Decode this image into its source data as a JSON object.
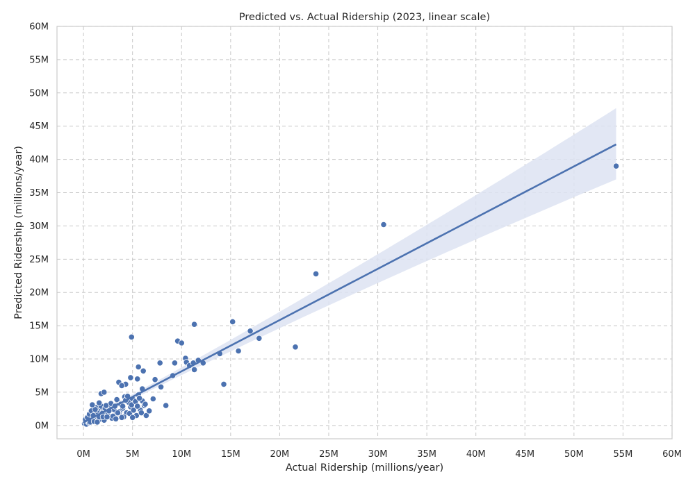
{
  "chart_data": {
    "type": "scatter",
    "title": "Predicted vs. Actual Ridership (2023, linear scale)",
    "xlabel": "Actual Ridership (millions/year)",
    "ylabel": "Predicted Ridership (millions/year)",
    "xlim": [
      -2.7,
      60
    ],
    "ylim": [
      -2.0,
      60
    ],
    "xticks": [
      0,
      5,
      10,
      15,
      20,
      25,
      30,
      35,
      40,
      45,
      50,
      55,
      60
    ],
    "yticks": [
      0,
      5,
      10,
      15,
      20,
      25,
      30,
      35,
      40,
      45,
      50,
      55,
      60
    ],
    "tick_suffix": "M",
    "grid": true,
    "point_color": "#4c72b0",
    "line_color": "#4c72b0",
    "band_color": "#dde3f2",
    "regression": {
      "x_range": [
        0,
        54.3
      ],
      "slope": 0.77,
      "intercept": 0.45,
      "ci_upper_at_max": 47.7,
      "ci_lower_at_max": 37.0
    },
    "series": [
      {
        "points": [
          [
            0.1,
            0.3
          ],
          [
            0.2,
            0.5
          ],
          [
            0.3,
            0.2
          ],
          [
            0.4,
            0.6
          ],
          [
            0.5,
            0.8
          ],
          [
            0.6,
            0.4
          ],
          [
            0.7,
            1.1
          ],
          [
            0.8,
            0.7
          ],
          [
            0.9,
            1.3
          ],
          [
            1.0,
            0.9
          ],
          [
            1.1,
            1.6
          ],
          [
            1.2,
            0.8
          ],
          [
            1.3,
            1.9
          ],
          [
            1.4,
            1.2
          ],
          [
            1.5,
            2.3
          ],
          [
            1.6,
            1.0
          ],
          [
            1.7,
            2.6
          ],
          [
            1.8,
            1.5
          ],
          [
            1.9,
            0.9
          ],
          [
            2.0,
            2.1
          ],
          [
            0.3,
            1.0
          ],
          [
            0.5,
            1.4
          ],
          [
            0.7,
            0.5
          ],
          [
            0.9,
            2.0
          ],
          [
            1.1,
            0.6
          ],
          [
            1.3,
            2.7
          ],
          [
            1.5,
            0.7
          ],
          [
            1.7,
            3.2
          ],
          [
            1.9,
            1.8
          ],
          [
            2.1,
            0.8
          ],
          [
            0.2,
            0.9
          ],
          [
            0.4,
            1.2
          ],
          [
            0.6,
            1.7
          ],
          [
            0.8,
            2.2
          ],
          [
            1.0,
            1.5
          ],
          [
            1.2,
            2.4
          ],
          [
            1.4,
            0.5
          ],
          [
            1.6,
            1.3
          ],
          [
            1.8,
            2.9
          ],
          [
            2.0,
            1.3
          ],
          [
            0.9,
            3.1
          ],
          [
            1.6,
            3.4
          ],
          [
            2.2,
            2.6
          ],
          [
            2.5,
            1.9
          ],
          [
            2.7,
            3.1
          ],
          [
            2.9,
            1.1
          ],
          [
            3.1,
            2.4
          ],
          [
            3.3,
            1.6
          ],
          [
            3.5,
            3.6
          ],
          [
            3.7,
            2.1
          ],
          [
            2.4,
            1.3
          ],
          [
            2.6,
            2.2
          ],
          [
            2.8,
            3.3
          ],
          [
            3.0,
            1.4
          ],
          [
            3.2,
            2.9
          ],
          [
            3.4,
            3.9
          ],
          [
            3.6,
            1.8
          ],
          [
            3.8,
            3.2
          ],
          [
            4.0,
            2.6
          ],
          [
            4.2,
            4.3
          ],
          [
            4.4,
            1.9
          ],
          [
            4.6,
            3.5
          ],
          [
            4.8,
            2.8
          ],
          [
            5.0,
            4.0
          ],
          [
            5.2,
            3.4
          ],
          [
            5.4,
            1.5
          ],
          [
            5.6,
            4.6
          ],
          [
            5.8,
            2.3
          ],
          [
            6.0,
            3.7
          ],
          [
            6.2,
            3.0
          ],
          [
            4.1,
            1.3
          ],
          [
            4.3,
            3.8
          ],
          [
            4.5,
            4.4
          ],
          [
            4.7,
            1.8
          ],
          [
            4.9,
            3.1
          ],
          [
            5.1,
            2.3
          ],
          [
            5.3,
            3.6
          ],
          [
            5.5,
            2.9
          ],
          [
            5.7,
            4.1
          ],
          [
            5.9,
            1.9
          ],
          [
            3.3,
            1.0
          ],
          [
            3.9,
            1.2
          ],
          [
            5.0,
            1.2
          ],
          [
            6.4,
            1.5
          ],
          [
            6.3,
            3.2
          ],
          [
            6.7,
            2.2
          ],
          [
            7.1,
            4.0
          ],
          [
            3.5,
            1.9
          ],
          [
            4.0,
            2.9
          ],
          [
            2.3,
            3.0
          ],
          [
            3.6,
            6.5
          ],
          [
            4.3,
            6.2
          ],
          [
            5.5,
            7.0
          ],
          [
            5.6,
            8.8
          ],
          [
            6.0,
            5.5
          ],
          [
            6.1,
            8.2
          ],
          [
            4.8,
            7.2
          ],
          [
            3.9,
            6.0
          ],
          [
            1.8,
            4.8
          ],
          [
            2.1,
            5.0
          ],
          [
            4.9,
            13.3
          ],
          [
            7.3,
            6.9
          ],
          [
            7.9,
            5.8
          ],
          [
            7.8,
            9.4
          ],
          [
            8.4,
            3.0
          ],
          [
            9.1,
            7.5
          ],
          [
            9.3,
            9.4
          ],
          [
            9.6,
            12.7
          ],
          [
            10.0,
            12.4
          ],
          [
            10.4,
            10.1
          ],
          [
            10.5,
            9.5
          ],
          [
            10.8,
            9.0
          ],
          [
            11.2,
            9.4
          ],
          [
            11.3,
            8.4
          ],
          [
            11.3,
            15.2
          ],
          [
            11.7,
            9.8
          ],
          [
            12.2,
            9.4
          ],
          [
            13.9,
            10.8
          ],
          [
            14.3,
            6.2
          ],
          [
            15.2,
            15.6
          ],
          [
            15.8,
            11.2
          ],
          [
            17.0,
            14.2
          ],
          [
            17.9,
            13.1
          ],
          [
            21.6,
            11.8
          ],
          [
            23.7,
            22.8
          ],
          [
            30.6,
            30.2
          ],
          [
            54.3,
            39.0
          ]
        ]
      }
    ]
  }
}
